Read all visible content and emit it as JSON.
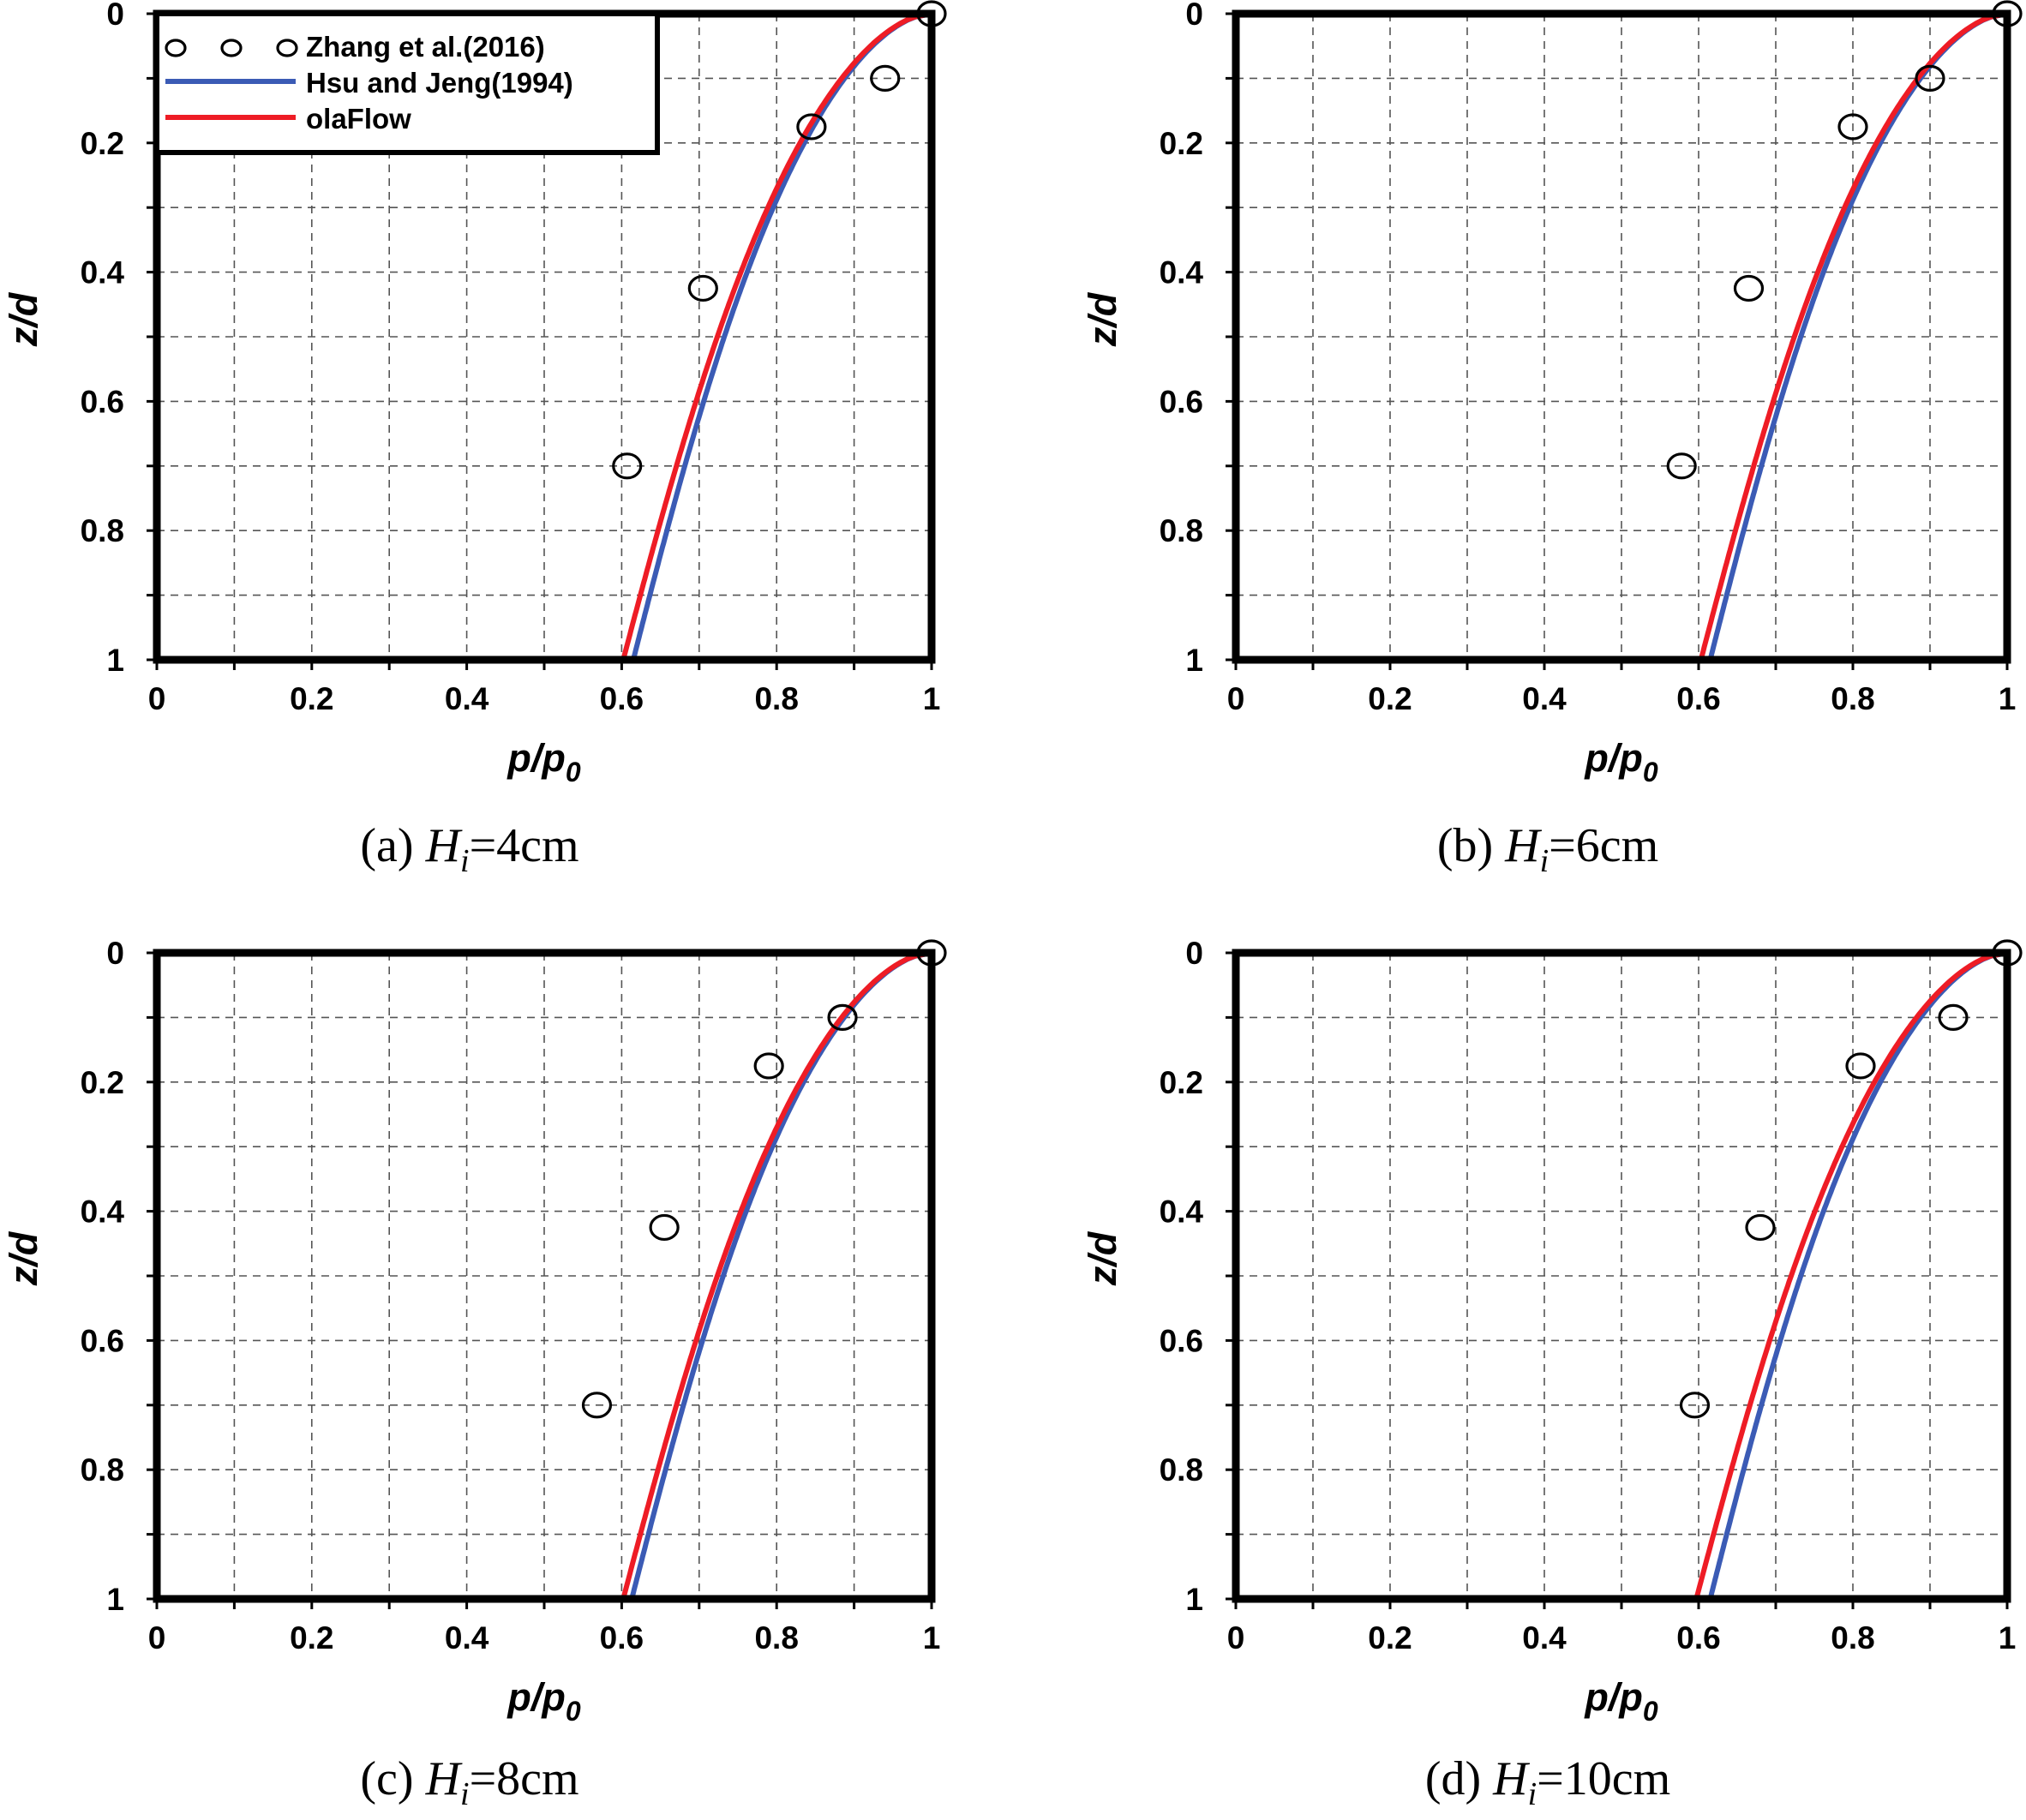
{
  "colors": {
    "zhang": "#000000",
    "hsu": "#3b5bb5",
    "olaflow": "#ee1c25",
    "background": "#ffffff"
  },
  "legend": {
    "entries": [
      {
        "name": "Zhang et al.(2016)",
        "style": "circle-markers"
      },
      {
        "name": "Hsu and Jeng(1994)",
        "style": "line"
      },
      {
        "name": "olaFlow",
        "style": "line"
      }
    ]
  },
  "chart_data": [
    {
      "type": "scatter+line",
      "caption": {
        "prefix": "(a)",
        "var": "H",
        "sub": "i",
        "value": "=4cm"
      },
      "xlabel": {
        "main": "p/p",
        "sub": "0"
      },
      "ylabel": "z/d",
      "xlim": [
        0,
        1
      ],
      "ylim": [
        0,
        1
      ],
      "y_inverted": true,
      "grid": true,
      "xticks": [
        "0",
        "0.2",
        "0.4",
        "0.6",
        "0.8",
        "1"
      ],
      "yticks": [
        "0",
        "0.2",
        "0.4",
        "0.6",
        "0.8",
        "1"
      ],
      "series": [
        {
          "name": "Zhang et al.(2016)",
          "type": "scatter",
          "points": [
            [
              1.0,
              0.0
            ],
            [
              0.94,
              0.1
            ],
            [
              0.845,
              0.175
            ],
            [
              0.705,
              0.425
            ],
            [
              0.607,
              0.7
            ]
          ]
        },
        {
          "name": "Hsu and Jeng(1994)",
          "type": "line",
          "p_bottom": 0.615
        },
        {
          "name": "olaFlow",
          "type": "line",
          "p_bottom": 0.602
        }
      ],
      "show_legend": true
    },
    {
      "type": "scatter+line",
      "caption": {
        "prefix": "(b)",
        "var": "H",
        "sub": "i",
        "value": "=6cm"
      },
      "xlabel": {
        "main": "p/p",
        "sub": "0"
      },
      "ylabel": "z/d",
      "xlim": [
        0,
        1
      ],
      "ylim": [
        0,
        1
      ],
      "y_inverted": true,
      "grid": true,
      "xticks": [
        "0",
        "0.2",
        "0.4",
        "0.6",
        "0.8",
        "1"
      ],
      "yticks": [
        "0",
        "0.2",
        "0.4",
        "0.6",
        "0.8",
        "1"
      ],
      "series": [
        {
          "name": "Zhang et al.(2016)",
          "type": "scatter",
          "points": [
            [
              1.0,
              0.0
            ],
            [
              0.9,
              0.1
            ],
            [
              0.8,
              0.175
            ],
            [
              0.665,
              0.425
            ],
            [
              0.578,
              0.7
            ]
          ]
        },
        {
          "name": "Hsu and Jeng(1994)",
          "type": "line",
          "p_bottom": 0.615
        },
        {
          "name": "olaFlow",
          "type": "line",
          "p_bottom": 0.603
        }
      ],
      "show_legend": false
    },
    {
      "type": "scatter+line",
      "caption": {
        "prefix": "(c)",
        "var": "H",
        "sub": "i",
        "value": "=8cm"
      },
      "xlabel": {
        "main": "p/p",
        "sub": "0"
      },
      "ylabel": "z/d",
      "xlim": [
        0,
        1
      ],
      "ylim": [
        0,
        1
      ],
      "y_inverted": true,
      "grid": true,
      "xticks": [
        "0",
        "0.2",
        "0.4",
        "0.6",
        "0.8",
        "1"
      ],
      "yticks": [
        "0",
        "0.2",
        "0.4",
        "0.6",
        "0.8",
        "1"
      ],
      "series": [
        {
          "name": "Zhang et al.(2016)",
          "type": "scatter",
          "points": [
            [
              1.0,
              0.0
            ],
            [
              0.885,
              0.1
            ],
            [
              0.79,
              0.175
            ],
            [
              0.655,
              0.425
            ],
            [
              0.568,
              0.7
            ]
          ]
        },
        {
          "name": "Hsu and Jeng(1994)",
          "type": "line",
          "p_bottom": 0.613
        },
        {
          "name": "olaFlow",
          "type": "line",
          "p_bottom": 0.602
        }
      ],
      "show_legend": false
    },
    {
      "type": "scatter+line",
      "caption": {
        "prefix": "(d)",
        "var": "H",
        "sub": "i",
        "value": "=10cm"
      },
      "xlabel": {
        "main": "p/p",
        "sub": "0"
      },
      "ylabel": "z/d",
      "xlim": [
        0,
        1
      ],
      "ylim": [
        0,
        1
      ],
      "y_inverted": true,
      "grid": true,
      "xticks": [
        "0",
        "0.2",
        "0.4",
        "0.6",
        "0.8",
        "1"
      ],
      "yticks": [
        "0",
        "0.2",
        "0.4",
        "0.6",
        "0.8",
        "1"
      ],
      "series": [
        {
          "name": "Zhang et al.(2016)",
          "type": "scatter",
          "points": [
            [
              1.0,
              0.0
            ],
            [
              0.93,
              0.1
            ],
            [
              0.81,
              0.175
            ],
            [
              0.68,
              0.425
            ],
            [
              0.595,
              0.7
            ]
          ]
        },
        {
          "name": "Hsu and Jeng(1994)",
          "type": "line",
          "p_bottom": 0.615
        },
        {
          "name": "olaFlow",
          "type": "line",
          "p_bottom": 0.597
        }
      ],
      "show_legend": false
    }
  ]
}
